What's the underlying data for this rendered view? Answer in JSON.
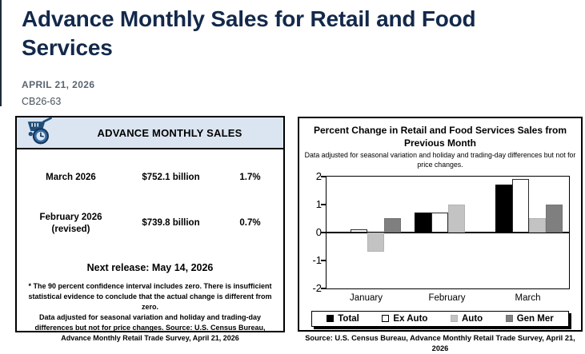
{
  "page": {
    "title": "Advance Monthly Sales for Retail and Food Services",
    "date": "APRIL 21, 2026",
    "release_number": "CB26-63",
    "accent_color": "#13294b"
  },
  "sales_box": {
    "header": "ADVANCE MONTHLY SALES",
    "icon": "cart-clock-icon",
    "header_bg": "#dbe5f1",
    "rows": [
      {
        "period": "March 2026",
        "period_note": "",
        "value": "$752.1 billion",
        "change": "1.7%"
      },
      {
        "period": "February 2026",
        "period_note": "(revised)",
        "value": "$739.8 billion",
        "change": "0.7%"
      }
    ],
    "next_release": "Next release: May 14, 2026",
    "footnote1": "* The 90 percent confidence interval includes zero. There is insufficient statistical evidence to conclude that the actual change is different from zero.",
    "footnote2": "Data adjusted for seasonal variation and holiday and trading-day differences but not for price changes. Source: U.S. Census Bureau, Advance Monthly Retail Trade Survey, April 21, 2026"
  },
  "chart_box": {
    "title": "Percent Change in Retail and Food Services Sales from Previous Month",
    "subtitle": "Data adjusted for seasonal variation and holiday and trading-day differences but not for price changes.",
    "source": "Source: U.S. Census Bureau, Advance Monthly Retail Trade Survey, April 21, 2026"
  },
  "chart_data": {
    "type": "bar",
    "title": "Percent Change in Retail and Food Services Sales from Previous Month",
    "subtitle": "Data adjusted for seasonal variation and holiday and trading-day differences but not for price changes.",
    "categories": [
      "January",
      "February",
      "March"
    ],
    "series": [
      {
        "name": "Total",
        "color": "#000000",
        "border": "#000000",
        "values": [
          0.0,
          0.7,
          1.7
        ]
      },
      {
        "name": "Ex Auto",
        "color": "#ffffff",
        "border": "#2b2b2b",
        "values": [
          0.1,
          0.7,
          1.9
        ]
      },
      {
        "name": "Auto",
        "color": "#c3c3c3",
        "border": "#b3b3b3",
        "values": [
          -0.7,
          1.0,
          0.5
        ]
      },
      {
        "name": "Gen Mer",
        "color": "#7f7f7f",
        "border": "#737373",
        "values": [
          0.5,
          0.0,
          1.0
        ]
      }
    ],
    "ylim": [
      -2,
      2
    ],
    "yticks": [
      2,
      1,
      0,
      -1,
      -2
    ],
    "xlabel": "",
    "ylabel": "",
    "grid": false,
    "legend_position": "bottom"
  }
}
